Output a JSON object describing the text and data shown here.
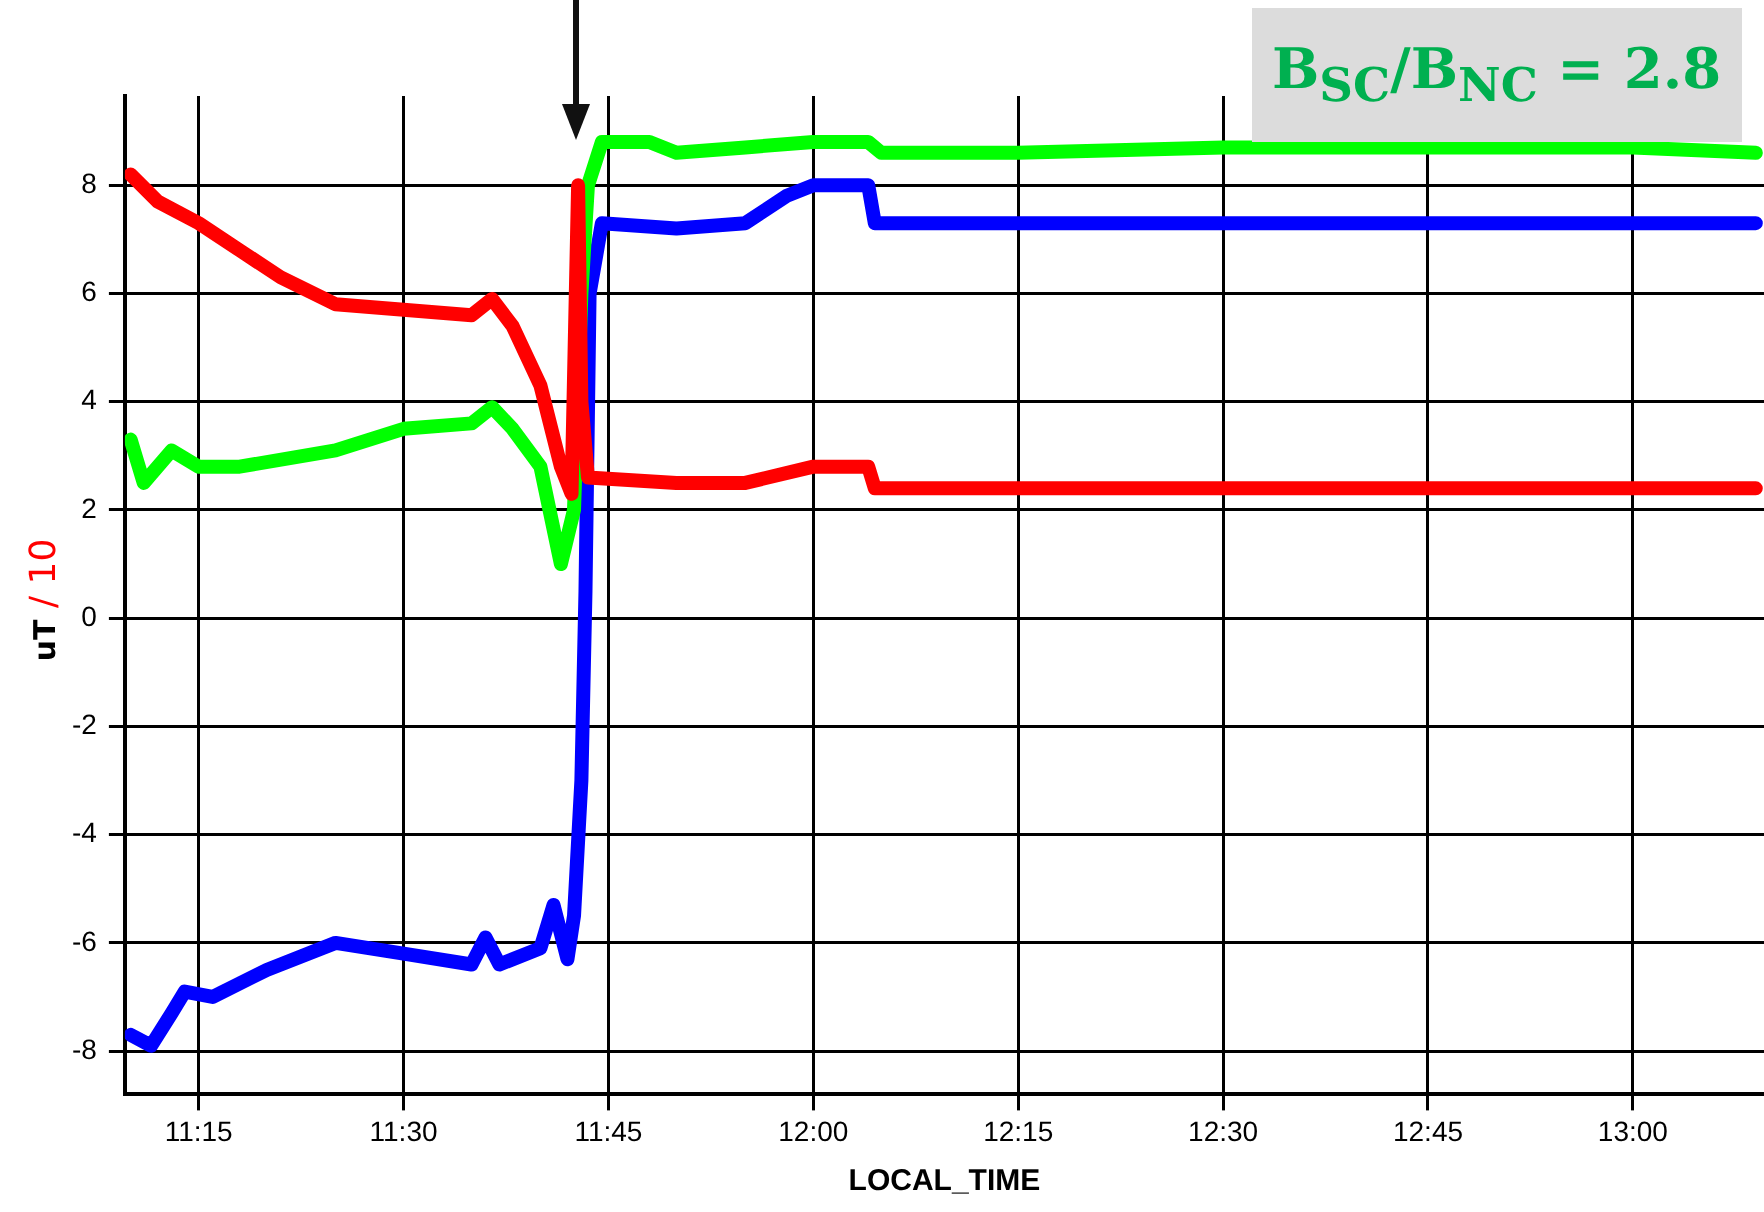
{
  "chart_data": {
    "type": "line",
    "xlabel": "LOCAL_TIME",
    "ylabel": "uT / 10",
    "annotations": [
      "B$_{SC}$/B$_{NC}$ = 2.8"
    ],
    "xlim": [
      11.16,
      13.16
    ],
    "ylim": [
      -8.8,
      9.65
    ],
    "xticks": [
      {
        "value": 11.25,
        "label": "11:15"
      },
      {
        "value": 11.5,
        "label": "11:30"
      },
      {
        "value": 11.75,
        "label": "11:45"
      },
      {
        "value": 12,
        "label": "12:00"
      },
      {
        "value": 12.25,
        "label": "12:15"
      },
      {
        "value": 12.5,
        "label": "12:30"
      },
      {
        "value": 12.75,
        "label": "12:45"
      },
      {
        "value": 13,
        "label": "13:00"
      }
    ],
    "yticks": [
      -8,
      -6,
      -4,
      -2,
      0,
      2,
      4,
      6,
      8
    ],
    "grid": true,
    "legend": false,
    "series": [
      {
        "color": "#ff0000",
        "x": [
          11.167,
          11.2,
          11.25,
          11.3,
          11.35,
          11.417,
          11.5,
          11.583,
          11.608,
          11.633,
          11.667,
          11.692,
          11.705,
          11.713,
          11.717,
          11.725,
          11.833,
          11.917,
          12,
          12.067,
          12.075,
          12.5,
          13,
          13.15
        ],
        "values": [
          8.2,
          7.7,
          7.3,
          6.8,
          6.3,
          5.8,
          5.7,
          5.6,
          5.9,
          5.4,
          4.3,
          2.8,
          2.3,
          8.0,
          4.0,
          2.6,
          2.5,
          2.5,
          2.8,
          2.8,
          2.4,
          2.4,
          2.4,
          2.4
        ]
      },
      {
        "color": "#00ff00",
        "x": [
          11.167,
          11.183,
          11.217,
          11.25,
          11.3,
          11.417,
          11.5,
          11.583,
          11.608,
          11.633,
          11.667,
          11.692,
          11.708,
          11.717,
          11.725,
          11.742,
          11.8,
          11.833,
          11.917,
          12,
          12.067,
          12.083,
          12.25,
          12.5,
          13,
          13.15
        ],
        "values": [
          3.3,
          2.5,
          3.1,
          2.8,
          2.8,
          3.1,
          3.5,
          3.6,
          3.9,
          3.5,
          2.8,
          1.0,
          2.0,
          6.0,
          8.0,
          8.8,
          8.8,
          8.6,
          8.7,
          8.8,
          8.8,
          8.6,
          8.6,
          8.7,
          8.7,
          8.6
        ]
      },
      {
        "color": "#0000ff",
        "x": [
          11.167,
          11.192,
          11.217,
          11.233,
          11.267,
          11.333,
          11.417,
          11.5,
          11.583,
          11.6,
          11.617,
          11.667,
          11.683,
          11.7,
          11.708,
          11.717,
          11.722,
          11.727,
          11.742,
          11.833,
          11.917,
          11.967,
          12,
          12.067,
          12.075,
          12.5,
          13,
          13.15
        ],
        "values": [
          -7.7,
          -7.9,
          -7.3,
          -6.9,
          -7.0,
          -6.5,
          -6.0,
          -6.2,
          -6.4,
          -5.9,
          -6.4,
          -6.1,
          -5.3,
          -6.3,
          -5.5,
          -3.0,
          0.5,
          6.0,
          7.3,
          7.2,
          7.3,
          7.8,
          8.0,
          8.0,
          7.3,
          7.3,
          7.3,
          7.3
        ]
      }
    ]
  }
}
